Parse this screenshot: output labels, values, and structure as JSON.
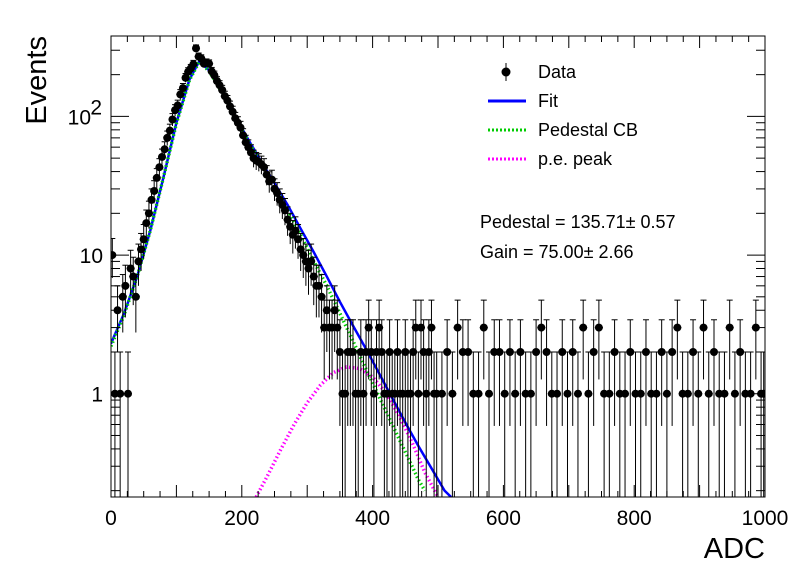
{
  "chart_data": {
    "type": "scatter",
    "xlabel": "ADC",
    "ylabel": "Events",
    "xlim": [
      0,
      1000
    ],
    "ylim": [
      0.18,
      380
    ],
    "y_scale": "log",
    "x_ticks": [
      {
        "value": 0,
        "label": "0"
      },
      {
        "value": 200,
        "label": "200"
      },
      {
        "value": 400,
        "label": "400"
      },
      {
        "value": 600,
        "label": "600"
      },
      {
        "value": 800,
        "label": "800"
      },
      {
        "value": 1000,
        "label": "1000"
      }
    ],
    "y_ticks": [
      {
        "value": 1,
        "label": "1"
      },
      {
        "value": 10,
        "label": "10"
      },
      {
        "value": 100,
        "label": "10",
        "exponent": "2"
      }
    ],
    "legend": {
      "position": "top-right",
      "entries": [
        {
          "label": "Data",
          "style": "marker",
          "color": "#000000"
        },
        {
          "label": "Fit",
          "style": "line",
          "color": "#0000ff"
        },
        {
          "label": "Pedestal CB",
          "style": "dotted",
          "color": "#00cc00"
        },
        {
          "label": "p.e. peak",
          "style": "dotted",
          "color": "#ff00ff"
        }
      ]
    },
    "annotations": [
      {
        "label": "Pedestal = ",
        "value": "135.71",
        "sep": "±",
        "err": "0.57"
      },
      {
        "label": "Gain = ",
        "value": "75.00",
        "sep": "±",
        "err": "2.66"
      }
    ],
    "series": [
      {
        "name": "Data",
        "color": "#000000",
        "points": [
          [
            2,
            10
          ],
          [
            6,
            1
          ],
          [
            10,
            4
          ],
          [
            14,
            1
          ],
          [
            18,
            5
          ],
          [
            22,
            6
          ],
          [
            26,
            1
          ],
          [
            30,
            8
          ],
          [
            34,
            7
          ],
          [
            38,
            5
          ],
          [
            42,
            9
          ],
          [
            46,
            11
          ],
          [
            50,
            13
          ],
          [
            54,
            17
          ],
          [
            58,
            20
          ],
          [
            62,
            25
          ],
          [
            66,
            29
          ],
          [
            70,
            36
          ],
          [
            74,
            43
          ],
          [
            78,
            51
          ],
          [
            82,
            58
          ],
          [
            86,
            70
          ],
          [
            90,
            79
          ],
          [
            94,
            95
          ],
          [
            98,
            111
          ],
          [
            102,
            120
          ],
          [
            106,
            144
          ],
          [
            110,
            160
          ],
          [
            114,
            190
          ],
          [
            118,
            210
          ],
          [
            122,
            222
          ],
          [
            126,
            238
          ],
          [
            130,
            310
          ],
          [
            134,
            270
          ],
          [
            138,
            262
          ],
          [
            142,
            240
          ],
          [
            146,
            244
          ],
          [
            150,
            240
          ],
          [
            154,
            211
          ],
          [
            158,
            198
          ],
          [
            162,
            180
          ],
          [
            166,
            168
          ],
          [
            170,
            155
          ],
          [
            174,
            140
          ],
          [
            178,
            130
          ],
          [
            182,
            118
          ],
          [
            186,
            108
          ],
          [
            190,
            97
          ],
          [
            194,
            90
          ],
          [
            198,
            83
          ],
          [
            202,
            73
          ],
          [
            206,
            65
          ],
          [
            210,
            60
          ],
          [
            214,
            55
          ],
          [
            218,
            50
          ],
          [
            222,
            48
          ],
          [
            226,
            47
          ],
          [
            230,
            45
          ],
          [
            234,
            43
          ],
          [
            238,
            38
          ],
          [
            242,
            34
          ],
          [
            246,
            35
          ],
          [
            250,
            30
          ],
          [
            254,
            28
          ],
          [
            258,
            25
          ],
          [
            262,
            23
          ],
          [
            266,
            21
          ],
          [
            270,
            18
          ],
          [
            274,
            16
          ],
          [
            278,
            14
          ],
          [
            282,
            15
          ],
          [
            286,
            13
          ],
          [
            290,
            11
          ],
          [
            294,
            10
          ],
          [
            298,
            9
          ],
          [
            302,
            8
          ],
          [
            306,
            9
          ],
          [
            310,
            7
          ],
          [
            314,
            6
          ],
          [
            318,
            6
          ],
          [
            322,
            5
          ],
          [
            326,
            3
          ],
          [
            330,
            4
          ],
          [
            334,
            3
          ],
          [
            338,
            3
          ],
          [
            342,
            4
          ],
          [
            346,
            3
          ],
          [
            350,
            2
          ],
          [
            354,
            1
          ],
          [
            358,
            1
          ],
          [
            362,
            2
          ],
          [
            366,
            2
          ],
          [
            370,
            2
          ],
          [
            374,
            1
          ],
          [
            378,
            1
          ],
          [
            382,
            2
          ],
          [
            386,
            1
          ],
          [
            390,
            2
          ],
          [
            394,
            3
          ],
          [
            398,
            2
          ],
          [
            402,
            1
          ],
          [
            406,
            2
          ],
          [
            410,
            3
          ],
          [
            414,
            2
          ],
          [
            418,
            1
          ],
          [
            422,
            1
          ],
          [
            426,
            2
          ],
          [
            430,
            1
          ],
          [
            434,
            1
          ],
          [
            438,
            2
          ],
          [
            442,
            1
          ],
          [
            446,
            1
          ],
          [
            450,
            2
          ],
          [
            454,
            1
          ],
          [
            458,
            1
          ],
          [
            462,
            2
          ],
          [
            466,
            3
          ],
          [
            470,
            1
          ],
          [
            474,
            3
          ],
          [
            478,
            2
          ],
          [
            482,
            1
          ],
          [
            486,
            2
          ],
          [
            490,
            3
          ],
          [
            494,
            1
          ],
          [
            498,
            1
          ],
          [
            506,
            1
          ],
          [
            514,
            2
          ],
          [
            522,
            1
          ],
          [
            530,
            3
          ],
          [
            538,
            2
          ],
          [
            546,
            2
          ],
          [
            554,
            1
          ],
          [
            562,
            1
          ],
          [
            570,
            3
          ],
          [
            578,
            1
          ],
          [
            586,
            2
          ],
          [
            594,
            2
          ],
          [
            602,
            1
          ],
          [
            610,
            2
          ],
          [
            618,
            1
          ],
          [
            626,
            2
          ],
          [
            634,
            1
          ],
          [
            642,
            1
          ],
          [
            650,
            2
          ],
          [
            658,
            3
          ],
          [
            666,
            2
          ],
          [
            674,
            1
          ],
          [
            682,
            1
          ],
          [
            690,
            2
          ],
          [
            698,
            1
          ],
          [
            706,
            2
          ],
          [
            714,
            1
          ],
          [
            722,
            3
          ],
          [
            730,
            1
          ],
          [
            738,
            2
          ],
          [
            746,
            3
          ],
          [
            754,
            1
          ],
          [
            762,
            1
          ],
          [
            770,
            2
          ],
          [
            778,
            1
          ],
          [
            786,
            1
          ],
          [
            794,
            2
          ],
          [
            802,
            1
          ],
          [
            810,
            1
          ],
          [
            818,
            2
          ],
          [
            826,
            1
          ],
          [
            834,
            1
          ],
          [
            842,
            2
          ],
          [
            850,
            1
          ],
          [
            858,
            2
          ],
          [
            866,
            3
          ],
          [
            874,
            1
          ],
          [
            882,
            1
          ],
          [
            890,
            2
          ],
          [
            898,
            1
          ],
          [
            906,
            3
          ],
          [
            914,
            1
          ],
          [
            922,
            2
          ],
          [
            930,
            1
          ],
          [
            938,
            1
          ],
          [
            946,
            3
          ],
          [
            954,
            1
          ],
          [
            962,
            2
          ],
          [
            970,
            1
          ],
          [
            978,
            1
          ],
          [
            986,
            3
          ],
          [
            994,
            1
          ],
          [
            998,
            1
          ]
        ]
      },
      {
        "name": "Fit",
        "color": "#0000ff",
        "points": [
          [
            0,
            2.3
          ],
          [
            20,
            3.8
          ],
          [
            40,
            7
          ],
          [
            60,
            15
          ],
          [
            80,
            36
          ],
          [
            100,
            90
          ],
          [
            120,
            185
          ],
          [
            135,
            250
          ],
          [
            150,
            215
          ],
          [
            170,
            150
          ],
          [
            190,
            100
          ],
          [
            210,
            68
          ],
          [
            230,
            47
          ],
          [
            250,
            33
          ],
          [
            270,
            23
          ],
          [
            290,
            15.5
          ],
          [
            310,
            10.5
          ],
          [
            330,
            7
          ],
          [
            350,
            4.6
          ],
          [
            370,
            3.1
          ],
          [
            390,
            2.1
          ],
          [
            410,
            1.4
          ],
          [
            430,
            0.93
          ],
          [
            450,
            0.62
          ],
          [
            470,
            0.42
          ],
          [
            490,
            0.29
          ],
          [
            510,
            0.2
          ],
          [
            520,
            0.18
          ]
        ]
      },
      {
        "name": "Pedestal CB",
        "color": "#00cc00",
        "points": [
          [
            0,
            2.2
          ],
          [
            20,
            3.7
          ],
          [
            40,
            7
          ],
          [
            60,
            15
          ],
          [
            80,
            36
          ],
          [
            100,
            89
          ],
          [
            120,
            183
          ],
          [
            135,
            248
          ],
          [
            150,
            212
          ],
          [
            170,
            148
          ],
          [
            190,
            98
          ],
          [
            210,
            66
          ],
          [
            230,
            45
          ],
          [
            250,
            31
          ],
          [
            270,
            21
          ],
          [
            290,
            14
          ],
          [
            310,
            9
          ],
          [
            330,
            6
          ],
          [
            350,
            3.8
          ],
          [
            370,
            2.4
          ],
          [
            390,
            1.5
          ],
          [
            410,
            0.95
          ],
          [
            430,
            0.6
          ],
          [
            450,
            0.38
          ],
          [
            470,
            0.24
          ],
          [
            480,
            0.2
          ]
        ]
      },
      {
        "name": "p.e. peak",
        "color": "#ff00ff",
        "points": [
          [
            222,
            0.18
          ],
          [
            240,
            0.26
          ],
          [
            260,
            0.4
          ],
          [
            280,
            0.6
          ],
          [
            300,
            0.86
          ],
          [
            320,
            1.15
          ],
          [
            340,
            1.42
          ],
          [
            360,
            1.56
          ],
          [
            380,
            1.52
          ],
          [
            400,
            1.32
          ],
          [
            420,
            1.02
          ],
          [
            440,
            0.7
          ],
          [
            460,
            0.45
          ],
          [
            480,
            0.27
          ],
          [
            500,
            0.18
          ]
        ]
      }
    ]
  }
}
